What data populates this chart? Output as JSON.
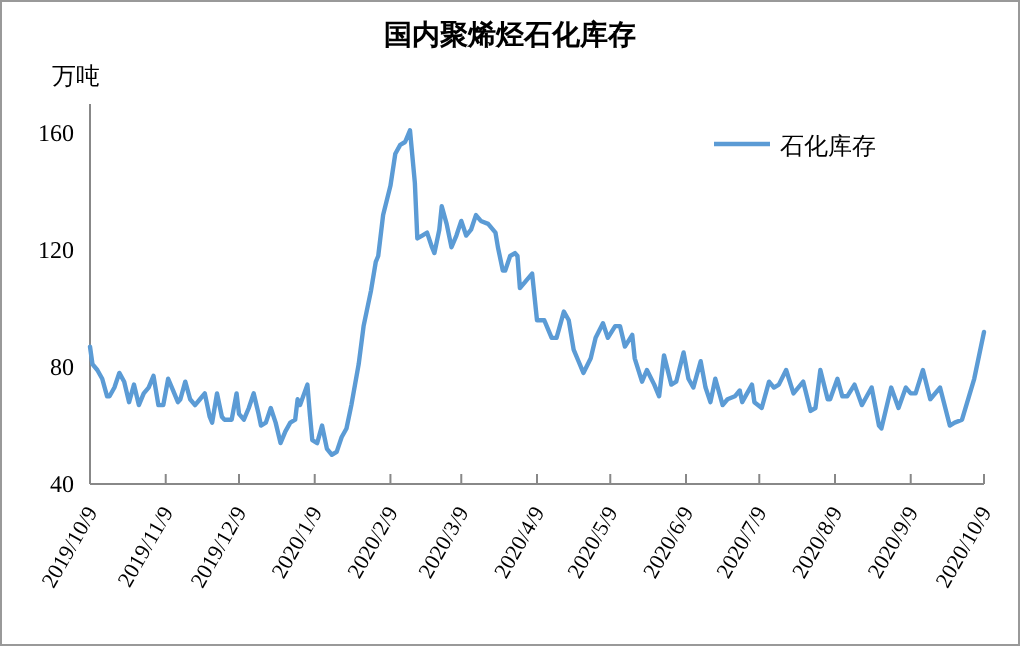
{
  "chart_data": {
    "type": "line",
    "title": "国内聚烯烃石化库存",
    "ylabel": "万吨",
    "legend": "top right",
    "xlim": [
      "2019-10-09",
      "2020-10-09"
    ],
    "ylim": [
      40,
      170
    ],
    "yticks": [
      40,
      80,
      120,
      160
    ],
    "xticks": [
      {
        "value": "2019-10-09",
        "label": "2019/10/9"
      },
      {
        "value": "2019-11-09",
        "label": "2019/11/9"
      },
      {
        "value": "2019-12-09",
        "label": "2019/12/9"
      },
      {
        "value": "2020-01-09",
        "label": "2020/1/9"
      },
      {
        "value": "2020-02-09",
        "label": "2020/2/9"
      },
      {
        "value": "2020-03-09",
        "label": "2020/3/9"
      },
      {
        "value": "2020-04-09",
        "label": "2020/4/9"
      },
      {
        "value": "2020-05-09",
        "label": "2020/5/9"
      },
      {
        "value": "2020-06-09",
        "label": "2020/6/9"
      },
      {
        "value": "2020-07-09",
        "label": "2020/7/9"
      },
      {
        "value": "2020-08-09",
        "label": "2020/8/9"
      },
      {
        "value": "2020-09-09",
        "label": "2020/9/9"
      },
      {
        "value": "2020-10-09",
        "label": "2020/10/9"
      }
    ],
    "x": [
      "2019-10-09",
      "2019-10-10",
      "2019-10-12",
      "2019-10-14",
      "2019-10-16",
      "2019-10-17",
      "2019-10-19",
      "2019-10-21",
      "2019-10-23",
      "2019-10-25",
      "2019-10-27",
      "2019-10-29",
      "2019-10-31",
      "2019-11-02",
      "2019-11-04",
      "2019-11-06",
      "2019-11-08",
      "2019-11-10",
      "2019-11-12",
      "2019-11-14",
      "2019-11-15",
      "2019-11-17",
      "2019-11-19",
      "2019-11-21",
      "2019-11-23",
      "2019-11-25",
      "2019-11-27",
      "2019-11-28",
      "2019-11-30",
      "2019-12-02",
      "2019-12-03",
      "2019-12-06",
      "2019-12-08",
      "2019-12-09",
      "2019-12-11",
      "2019-12-13",
      "2019-12-15",
      "2019-12-17",
      "2019-12-18",
      "2019-12-20",
      "2019-12-22",
      "2019-12-24",
      "2019-12-26",
      "2019-12-28",
      "2019-12-30",
      "2020-01-01",
      "2020-01-02",
      "2020-01-03",
      "2020-01-06",
      "2020-01-07",
      "2020-01-08",
      "2020-01-10",
      "2020-01-12",
      "2020-01-14",
      "2020-01-16",
      "2020-01-18",
      "2020-01-20",
      "2020-01-22",
      "2020-01-24",
      "2020-01-27",
      "2020-01-29",
      "2020-02-01",
      "2020-02-03",
      "2020-02-04",
      "2020-02-06",
      "2020-02-09",
      "2020-02-11",
      "2020-02-13",
      "2020-02-15",
      "2020-02-17",
      "2020-02-19",
      "2020-02-20",
      "2020-02-22",
      "2020-02-24",
      "2020-02-26",
      "2020-02-27",
      "2020-02-29",
      "2020-03-01",
      "2020-03-03",
      "2020-03-05",
      "2020-03-07",
      "2020-03-09",
      "2020-03-11",
      "2020-03-13",
      "2020-03-15",
      "2020-03-17",
      "2020-03-20",
      "2020-03-23",
      "2020-03-24",
      "2020-03-26",
      "2020-03-27",
      "2020-03-29",
      "2020-03-31",
      "2020-04-01",
      "2020-04-02",
      "2020-04-07",
      "2020-04-09",
      "2020-04-12",
      "2020-04-15",
      "2020-04-17",
      "2020-04-20",
      "2020-04-22",
      "2020-04-24",
      "2020-04-26",
      "2020-04-28",
      "2020-05-01",
      "2020-05-03",
      "2020-05-06",
      "2020-05-08",
      "2020-05-11",
      "2020-05-13",
      "2020-05-15",
      "2020-05-18",
      "2020-05-19",
      "2020-05-22",
      "2020-05-24",
      "2020-05-27",
      "2020-05-29",
      "2020-05-31",
      "2020-06-03",
      "2020-06-05",
      "2020-06-08",
      "2020-06-10",
      "2020-06-12",
      "2020-06-15",
      "2020-06-17",
      "2020-06-19",
      "2020-06-21",
      "2020-06-24",
      "2020-06-26",
      "2020-06-29",
      "2020-07-01",
      "2020-07-02",
      "2020-07-04",
      "2020-07-06",
      "2020-07-07",
      "2020-07-10",
      "2020-07-13",
      "2020-07-15",
      "2020-07-17",
      "2020-07-20",
      "2020-07-23",
      "2020-07-27",
      "2020-07-30",
      "2020-08-01",
      "2020-08-03",
      "2020-08-06",
      "2020-08-07",
      "2020-08-10",
      "2020-08-12",
      "2020-08-14",
      "2020-08-17",
      "2020-08-20",
      "2020-08-22",
      "2020-08-24",
      "2020-08-27",
      "2020-08-28",
      "2020-09-01",
      "2020-09-04",
      "2020-09-07",
      "2020-09-09",
      "2020-09-11",
      "2020-09-14",
      "2020-09-17",
      "2020-09-21",
      "2020-09-25",
      "2020-09-27",
      "2020-09-30",
      "2020-10-05",
      "2020-10-09"
    ],
    "series": [
      {
        "name": "石化库存",
        "color": "#5b9bd5",
        "values": [
          87,
          81,
          79,
          76,
          70,
          70,
          73,
          78,
          75,
          68,
          74,
          67,
          71,
          73,
          77,
          67,
          67,
          76,
          72,
          68,
          69,
          75,
          69,
          67,
          69,
          71,
          63,
          61,
          71,
          63,
          62,
          62,
          71,
          64,
          62,
          66,
          71,
          64,
          60,
          61,
          66,
          61,
          54,
          58,
          61,
          62,
          69,
          67,
          74,
          64,
          55,
          54,
          60,
          52,
          50,
          51,
          56,
          59,
          67,
          81,
          94,
          106,
          116,
          118,
          132,
          142,
          153,
          156,
          157,
          161,
          143,
          124,
          125,
          126,
          121,
          119,
          127,
          135,
          129,
          121,
          125,
          130,
          125,
          127,
          132,
          130,
          129,
          126,
          121,
          113,
          113,
          118,
          119,
          118,
          107,
          112,
          96,
          96,
          90,
          90,
          99,
          96,
          86,
          82,
          78,
          83,
          90,
          95,
          90,
          94,
          94,
          87,
          91,
          83,
          75,
          79,
          74,
          70,
          84,
          74,
          75,
          85,
          76,
          73,
          82,
          73,
          68,
          76,
          67,
          69,
          70,
          72,
          68,
          71,
          74,
          68,
          66,
          75,
          73,
          74,
          79,
          71,
          75,
          65,
          66,
          79,
          69,
          69,
          76,
          70,
          70,
          74,
          67,
          70,
          73,
          60,
          59,
          73,
          66,
          73,
          71,
          71,
          79,
          69,
          73,
          60,
          61,
          62,
          76,
          92
        ]
      }
    ]
  }
}
